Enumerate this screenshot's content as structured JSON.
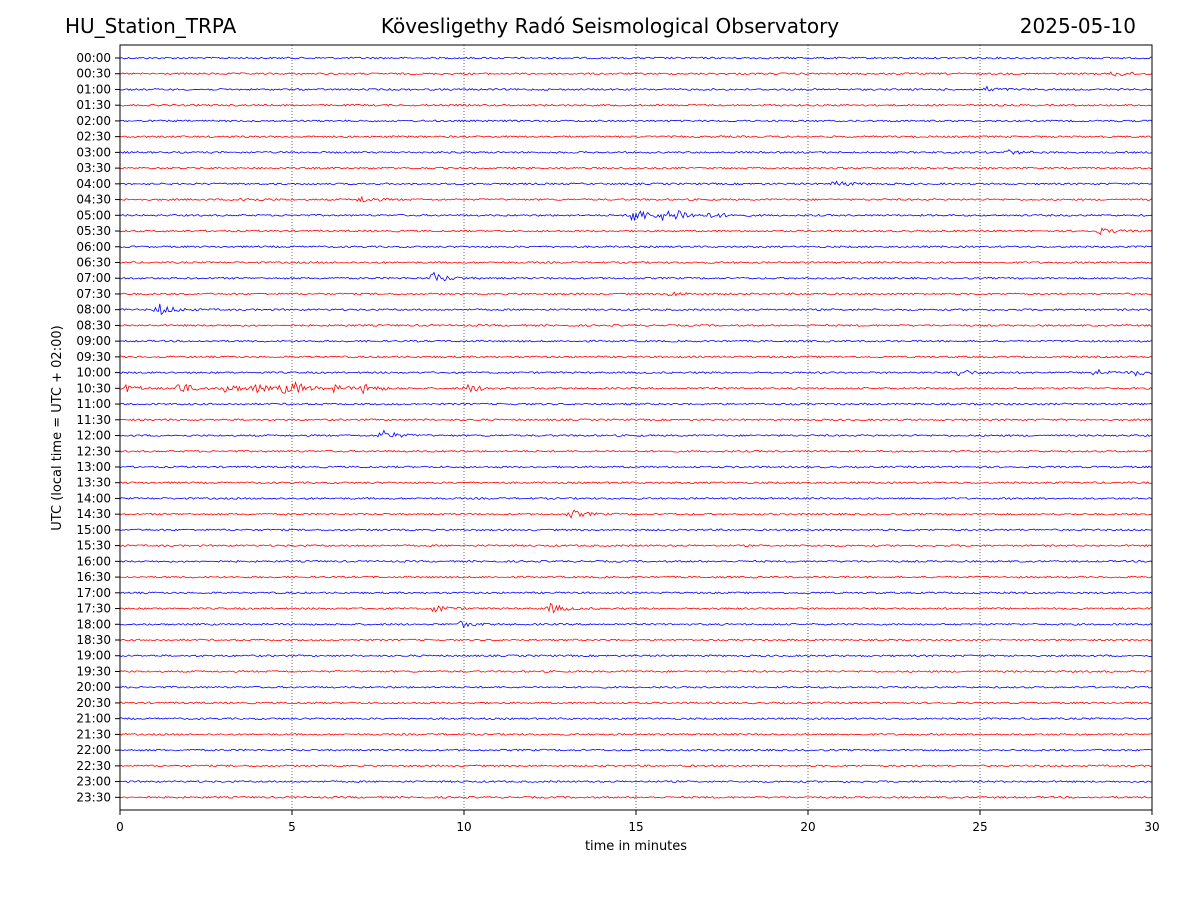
{
  "header": {
    "station": "HU_Station_TRPA",
    "observatory": "Kövesligethy Radó Seismological Observatory",
    "date": "2025-05-10"
  },
  "chart_data": {
    "type": "line",
    "xlabel": "time in minutes",
    "ylabel": "UTC (local time = UTC + 02:00)",
    "xlim": [
      0,
      30
    ],
    "x_ticks": [
      0,
      5,
      10,
      15,
      20,
      25,
      30
    ],
    "grid": "vertical dotted lines at x ticks",
    "colors": {
      "even_rows": "#0000ff",
      "odd_rows": "#ff0000"
    },
    "rows": [
      "00:00",
      "00:30",
      "01:00",
      "01:30",
      "02:00",
      "02:30",
      "03:00",
      "03:30",
      "04:00",
      "04:30",
      "05:00",
      "05:30",
      "06:00",
      "06:30",
      "07:00",
      "07:30",
      "08:00",
      "08:30",
      "09:00",
      "09:30",
      "10:00",
      "10:30",
      "11:00",
      "11:30",
      "12:00",
      "12:30",
      "13:00",
      "13:30",
      "14:00",
      "14:30",
      "15:00",
      "15:30",
      "16:00",
      "16:30",
      "17:00",
      "17:30",
      "18:00",
      "18:30",
      "19:00",
      "19:30",
      "20:00",
      "20:30",
      "21:00",
      "21:30",
      "22:00",
      "22:30",
      "23:00",
      "23:30"
    ],
    "events": [
      {
        "row": "00:30",
        "t": 28.9,
        "amp": 0.3
      },
      {
        "row": "01:00",
        "t": 25.2,
        "amp": 0.25
      },
      {
        "row": "03:00",
        "t": 25.8,
        "amp": 0.25
      },
      {
        "row": "04:00",
        "t": 20.8,
        "amp": 0.35
      },
      {
        "row": "04:30",
        "t": 3.5,
        "amp": 0.3
      },
      {
        "row": "04:30",
        "t": 7.0,
        "amp": 0.35
      },
      {
        "row": "05:00",
        "t": 14.9,
        "amp": 1.0
      },
      {
        "row": "05:00",
        "t": 15.7,
        "amp": 0.6
      },
      {
        "row": "05:00",
        "t": 16.2,
        "amp": 0.55
      },
      {
        "row": "05:00",
        "t": 17.2,
        "amp": 0.3
      },
      {
        "row": "05:30",
        "t": 28.5,
        "amp": 0.3
      },
      {
        "row": "07:00",
        "t": 9.1,
        "amp": 0.6
      },
      {
        "row": "07:30",
        "t": 16.0,
        "amp": 0.25
      },
      {
        "row": "08:00",
        "t": 1.1,
        "amp": 0.7
      },
      {
        "row": "10:00",
        "t": 24.3,
        "amp": 0.5
      },
      {
        "row": "10:00",
        "t": 28.3,
        "amp": 0.4
      },
      {
        "row": "10:00",
        "t": 29.5,
        "amp": 0.3
      },
      {
        "row": "10:30",
        "t": 0.2,
        "amp": 0.4
      },
      {
        "row": "10:30",
        "t": 1.7,
        "amp": 0.65
      },
      {
        "row": "10:30",
        "t": 3.1,
        "amp": 0.55
      },
      {
        "row": "10:30",
        "t": 3.9,
        "amp": 0.45
      },
      {
        "row": "10:30",
        "t": 4.7,
        "amp": 0.55
      },
      {
        "row": "10:30",
        "t": 5.1,
        "amp": 0.5
      },
      {
        "row": "10:30",
        "t": 6.2,
        "amp": 0.35
      },
      {
        "row": "10:30",
        "t": 7.1,
        "amp": 0.55
      },
      {
        "row": "10:30",
        "t": 10.1,
        "amp": 0.5
      },
      {
        "row": "12:00",
        "t": 7.6,
        "amp": 0.6
      },
      {
        "row": "14:30",
        "t": 13.1,
        "amp": 0.45
      },
      {
        "row": "17:30",
        "t": 9.1,
        "amp": 0.45
      },
      {
        "row": "17:30",
        "t": 12.5,
        "amp": 0.5
      },
      {
        "row": "18:00",
        "t": 9.9,
        "amp": 0.3
      }
    ]
  }
}
